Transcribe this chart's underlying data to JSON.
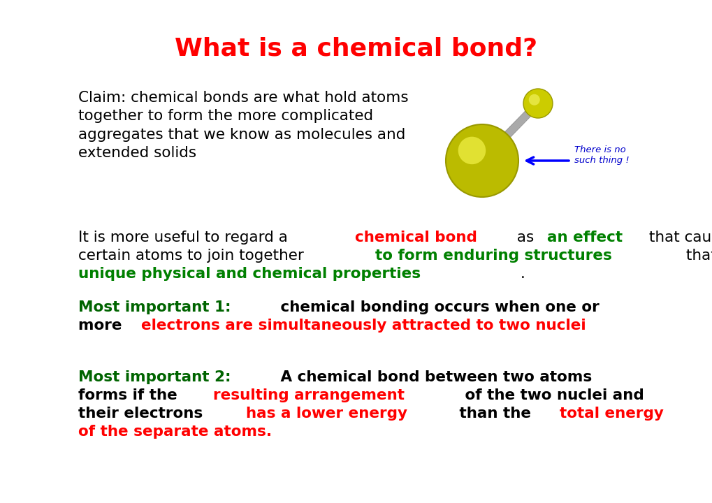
{
  "title": "What is a chemical bond?",
  "title_color": "#FF0000",
  "title_fontsize": 26,
  "bg_color": "#FFFFFF",
  "claim_text": "Claim: chemical bonds are what hold atoms\ntogether to form the more complicated\naggregates that we know as molecules and\nextended solids",
  "claim_color": "#000000",
  "claim_fontsize": 15.5,
  "there_text": "There is no\nsuch thing !",
  "there_color": "#0000CC",
  "para2_fontsize": 15.5,
  "mono_fontsize": 15.5
}
